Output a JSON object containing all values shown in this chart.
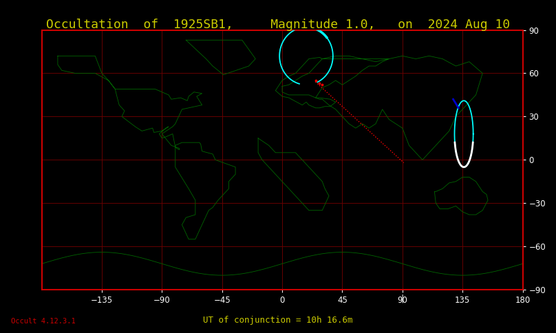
{
  "title": "Occultation  of  1925SB1,     Magnitude 1.0,   on  2024 Aug 10",
  "title_color": "#cccc00",
  "title_fontsize": 13,
  "bg_color": "#000000",
  "map_edge_color": "#cc0000",
  "land_color": "#006600",
  "grid_color": "#660000",
  "axis_label_color": "#ffffff",
  "bottom_left_text": "Occult 4.12.3.1",
  "bottom_left_color": "#cc0000",
  "bottom_center_text": "UT of conjunction = 10h 16.6m",
  "bottom_center_color": "#cccc00",
  "xlim": [
    -180,
    180
  ],
  "ylim": [
    -90,
    90
  ],
  "xticks": [
    -45,
    0,
    45,
    90,
    135,
    180,
    -135,
    -90
  ],
  "yticks": [
    90,
    60,
    30,
    0,
    -30,
    -60,
    -90
  ],
  "conjunction_lon": 90,
  "conjunction_tick_color": "#ffffff",
  "grid_lons": [
    -180,
    -135,
    -90,
    -45,
    0,
    45,
    90,
    135,
    180
  ],
  "grid_lats": [
    -90,
    -60,
    -30,
    0,
    30,
    60,
    90
  ]
}
